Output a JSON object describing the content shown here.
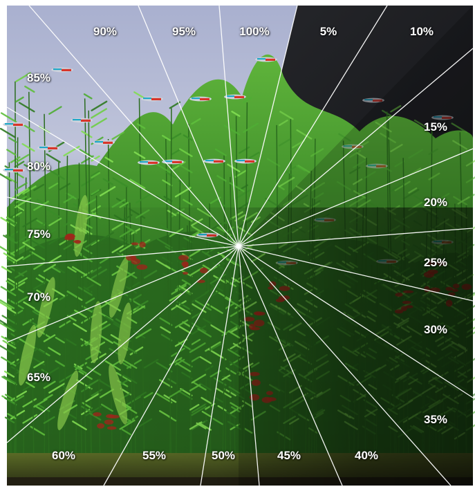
{
  "image": {
    "subject": "aquarium",
    "colors": {
      "light_background": "#b8bed6",
      "dark_background": "#1e1f22",
      "plant_dark": "#244f1a",
      "plant_mid": "#3f8f2a",
      "plant_light": "#7ed34a",
      "red_plant": "#9b2a1e",
      "substrate": "#4b5c22",
      "ray_color": "#ffffff"
    }
  },
  "brightness_labels": [
    "5%",
    "10%",
    "15%",
    "20%",
    "25%",
    "30%",
    "35%",
    "40%",
    "45%",
    "50%",
    "55%",
    "60%",
    "65%",
    "70%",
    "75%",
    "80%",
    "85%",
    "90%",
    "95%",
    "100%"
  ]
}
